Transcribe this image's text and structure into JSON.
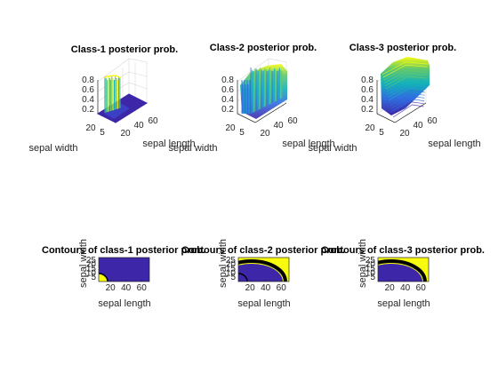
{
  "chart_data": [
    {
      "type": "surface",
      "title": "Class-1 posterior prob.",
      "xlabel": "sepal length",
      "ylabel": "sepal width",
      "zlabel": "",
      "xticks": [
        "20",
        "40",
        "60"
      ],
      "yticks": [
        "5",
        "20"
      ],
      "zticks": [
        "0.2",
        "0.4",
        "0.6",
        "0.8"
      ],
      "zlim": [
        0,
        1
      ],
      "colormap": [
        "#3e26a8",
        "#2f6fe0",
        "#14b2b9",
        "#65c96a",
        "#f9fb0e"
      ]
    },
    {
      "type": "surface",
      "title": "Class-2 posterior prob.",
      "xlabel": "sepal length",
      "ylabel": "sepal width",
      "zlabel": "",
      "xticks": [
        "20",
        "40",
        "60"
      ],
      "yticks": [
        "5",
        "20"
      ],
      "zticks": [
        "0.2",
        "0.4",
        "0.6",
        "0.8"
      ],
      "zlim": [
        0,
        1
      ],
      "colormap": [
        "#3e26a8",
        "#2f6fe0",
        "#14b2b9",
        "#65c96a",
        "#f9fb0e"
      ]
    },
    {
      "type": "surface",
      "title": "Class-3 posterior prob.",
      "xlabel": "sepal length",
      "ylabel": "sepal width",
      "zlabel": "",
      "xticks": [
        "20",
        "40",
        "60"
      ],
      "yticks": [
        "5",
        "20"
      ],
      "zticks": [
        "0.2",
        "0.4",
        "0.6",
        "0.8"
      ],
      "zlim": [
        0,
        1
      ],
      "colormap": [
        "#3e26a8",
        "#2f6fe0",
        "#14b2b9",
        "#65c96a",
        "#f9fb0e"
      ]
    },
    {
      "type": "contour",
      "title": "Contours of class-1 posterior prob.",
      "xlabel": "sepal length",
      "ylabel": "sepal width",
      "xlim": [
        5,
        70
      ],
      "ylim": [
        0,
        28
      ],
      "xticks": [
        "20",
        "40",
        "60"
      ],
      "yticks": [
        "5",
        "10",
        "15",
        "20",
        "25"
      ],
      "region_color": "#f9fb0e",
      "background_color": "#3e26a8",
      "line_color": "#000000"
    },
    {
      "type": "contour",
      "title": "Contours of class-2 posterior prob.",
      "xlabel": "sepal length",
      "ylabel": "sepal width",
      "xlim": [
        5,
        70
      ],
      "ylim": [
        0,
        28
      ],
      "xticks": [
        "20",
        "40",
        "60"
      ],
      "yticks": [
        "5",
        "10",
        "15",
        "20",
        "25"
      ],
      "region_color": "#f9fb0e",
      "background_color": "#3e26a8",
      "line_color": "#000000"
    },
    {
      "type": "contour",
      "title": "Contours of class-3 posterior prob.",
      "xlabel": "sepal length",
      "ylabel": "sepal width",
      "xlim": [
        5,
        70
      ],
      "ylim": [
        0,
        28
      ],
      "xticks": [
        "20",
        "40",
        "60"
      ],
      "yticks": [
        "5",
        "10",
        "15",
        "20",
        "25"
      ],
      "region_color": "#f9fb0e",
      "background_color": "#3e26a8",
      "line_color": "#000000"
    }
  ]
}
